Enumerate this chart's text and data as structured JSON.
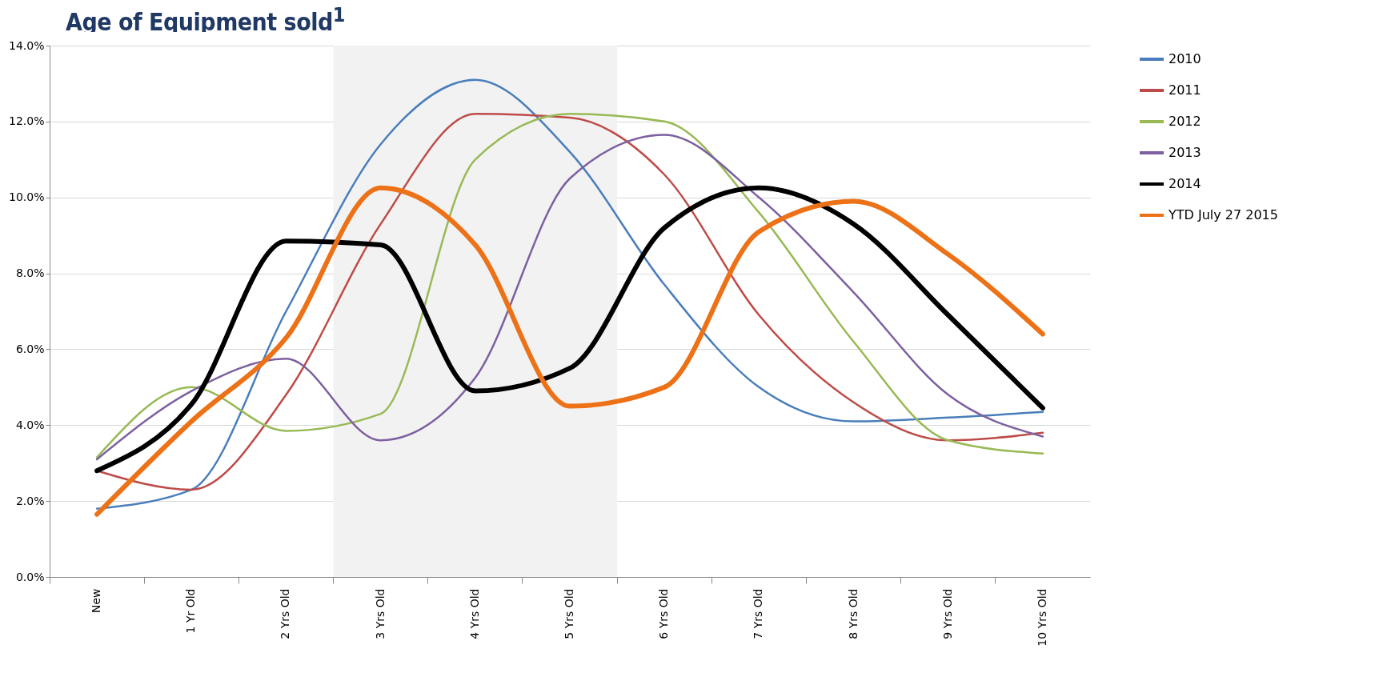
{
  "chart_data": {
    "type": "line",
    "title": "Age of Equipment sold$^{1}$",
    "categories": [
      "New",
      "1 Yr Old",
      "2 Yrs Old",
      "3 Yrs Old",
      "4 Yrs Old",
      "5 Yrs Old",
      "6 Yrs Old",
      "7 Yrs Old",
      "8 Yrs Old",
      "9 Yrs Old",
      "10 Yrs Old"
    ],
    "series": [
      {
        "name": "2010",
        "color": "#4a7ebb",
        "values": [
          1.8,
          2.3,
          7.0,
          11.4,
          13.1,
          11.2,
          7.7,
          5.0,
          4.1,
          4.2,
          4.35
        ]
      },
      {
        "name": "2011",
        "color": "#be4b48",
        "values": [
          2.8,
          2.3,
          4.8,
          9.3,
          12.2,
          12.1,
          10.6,
          6.9,
          4.6,
          3.6,
          3.8
        ]
      },
      {
        "name": "2012",
        "color": "#98b954",
        "values": [
          3.15,
          5.0,
          3.85,
          4.3,
          11.0,
          12.2,
          12.0,
          9.6,
          6.2,
          3.6,
          3.25
        ]
      },
      {
        "name": "2013",
        "color": "#7d60a0",
        "values": [
          3.1,
          4.9,
          5.75,
          3.6,
          5.25,
          10.5,
          11.65,
          10.0,
          7.5,
          4.8,
          3.7
        ]
      },
      {
        "name": "2014",
        "color": "#000000",
        "values": [
          2.8,
          4.55,
          8.85,
          8.75,
          4.9,
          5.5,
          9.2,
          10.25,
          9.3,
          6.9,
          4.45
        ]
      },
      {
        "name": "YTD July 27 2015",
        "color": "#ed7117",
        "values": [
          1.65,
          4.1,
          6.3,
          10.25,
          8.75,
          4.5,
          5.0,
          9.1,
          9.9,
          8.5,
          6.4
        ]
      }
    ],
    "ylim": [
      0,
      14
    ],
    "yticks": [
      {
        "value": 0,
        "label": "0.0%"
      },
      {
        "value": 2,
        "label": "2.0%"
      },
      {
        "value": 4,
        "label": "4.0%"
      },
      {
        "value": 6,
        "label": "6.0%"
      },
      {
        "value": 8,
        "label": "8.0%"
      },
      {
        "value": 10,
        "label": "10.0%"
      },
      {
        "value": 12,
        "label": "12.0%"
      },
      {
        "value": 14,
        "label": "14.0%"
      }
    ],
    "bands": [
      {
        "axis": "x",
        "from": "3 Yrs Old",
        "to": "5 Yrs Old",
        "color": "#f2f2f2"
      }
    ],
    "grid": "y",
    "legend": "top right",
    "marker": "none",
    "line_style": "solid"
  }
}
